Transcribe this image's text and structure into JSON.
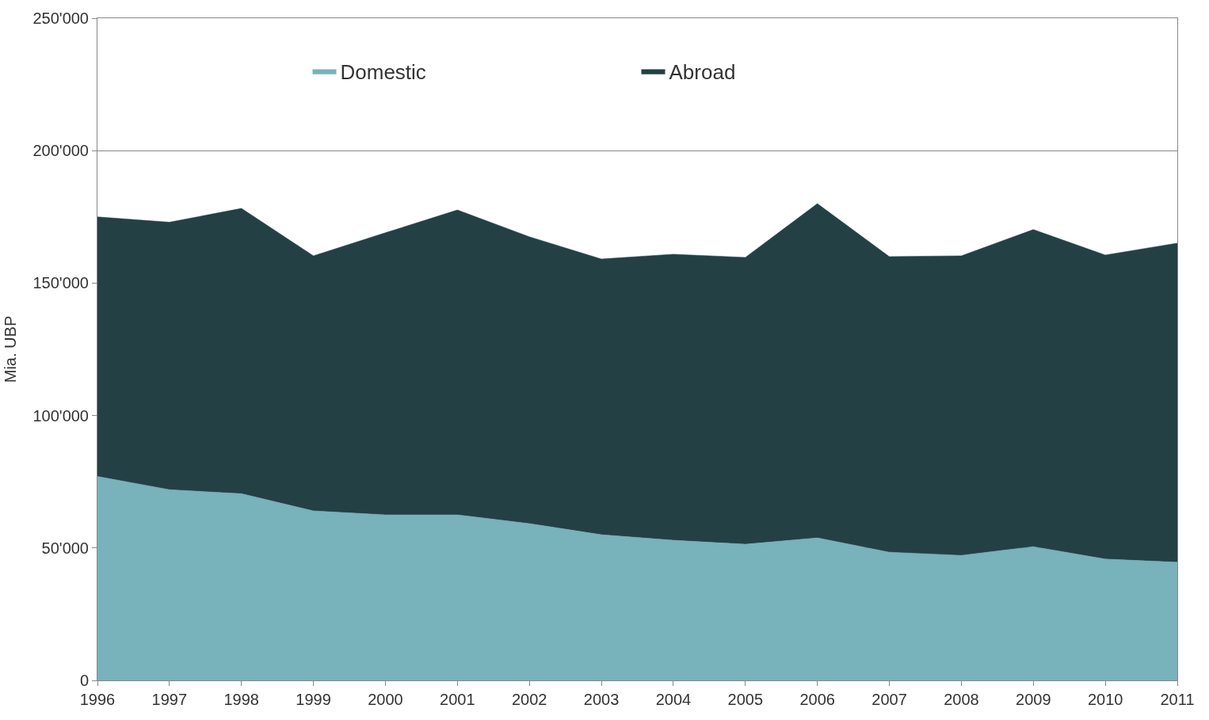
{
  "chart_data": {
    "type": "area",
    "stacked": true,
    "ylabel": "Mia. UBP",
    "x": [
      1996,
      1997,
      1998,
      1999,
      2000,
      2001,
      2002,
      2003,
      2004,
      2005,
      2006,
      2007,
      2008,
      2009,
      2010,
      2011
    ],
    "series": [
      {
        "name": "Domestic",
        "color": "#78b2ba",
        "values": [
          77000,
          72000,
          70500,
          64000,
          62500,
          62500,
          59200,
          55000,
          52900,
          51400,
          53800,
          48400,
          47200,
          50500,
          45800,
          44600
        ]
      },
      {
        "name": "Abroad",
        "color": "#234045",
        "values": [
          98000,
          101000,
          107700,
          96300,
          106500,
          115100,
          108300,
          104100,
          108000,
          108300,
          126200,
          111600,
          113100,
          119700,
          114800,
          120500
        ]
      }
    ],
    "xlim": [
      1996,
      2011
    ],
    "xticks": [
      1996,
      1997,
      1998,
      1999,
      2000,
      2001,
      2002,
      2003,
      2004,
      2005,
      2006,
      2007,
      2008,
      2009,
      2010,
      2011
    ],
    "ylim": [
      0,
      250000
    ],
    "yticks": [
      0,
      {
        "value": 50000,
        "label": "50'000"
      },
      {
        "value": 100000,
        "label": "100'000"
      },
      {
        "value": 150000,
        "label": "150'000"
      },
      {
        "value": 200000,
        "label": "200'000"
      },
      {
        "value": 250000,
        "label": "250'000"
      }
    ],
    "grid": "y",
    "legend": "top"
  }
}
